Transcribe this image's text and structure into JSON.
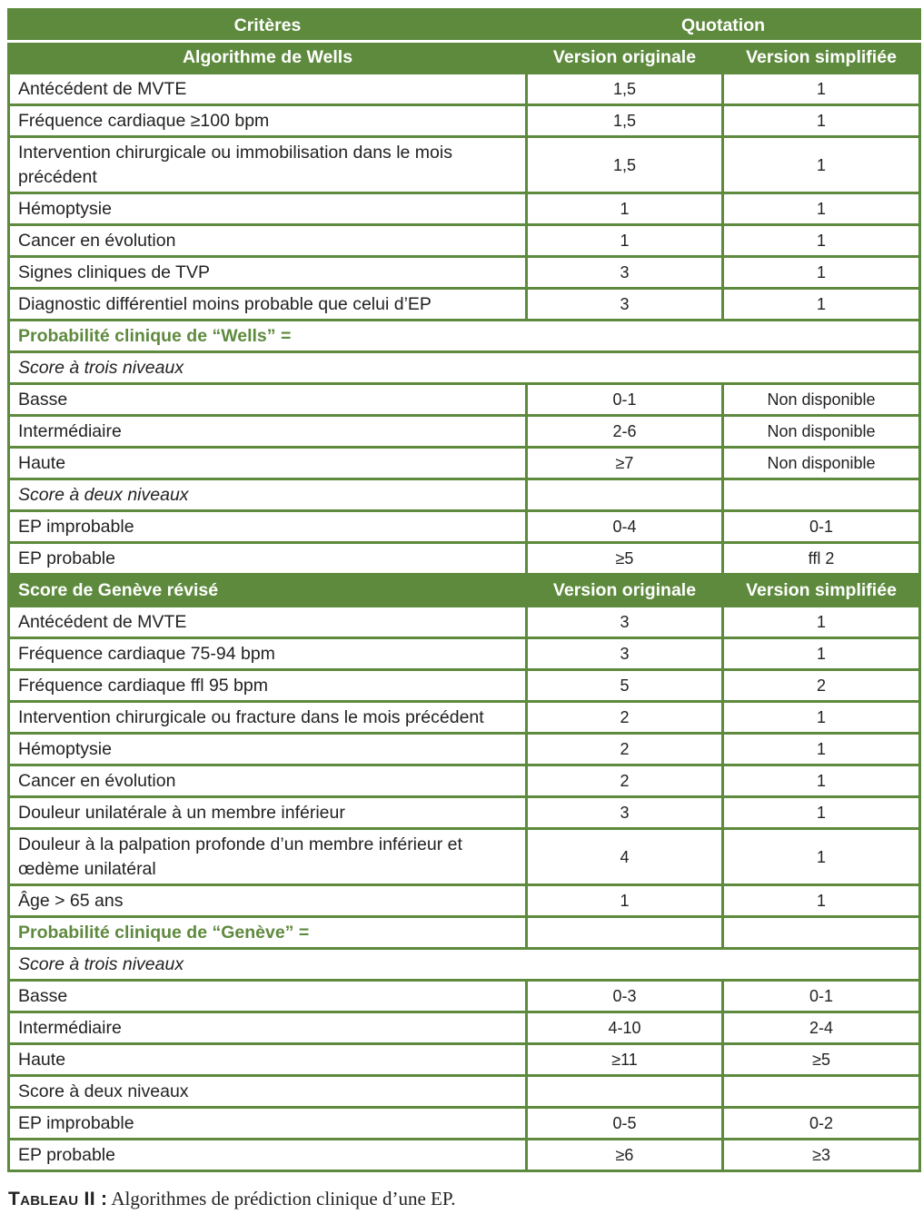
{
  "table": {
    "header": {
      "criteria": "Critères",
      "quotation": "Quotation"
    },
    "rows": [
      {
        "type": "header",
        "cells": [
          "Algorithme de Wells",
          "Version originale",
          "Version simplifiée"
        ]
      },
      {
        "type": "data",
        "cells": [
          "Antécédent de MVTE",
          "1,5",
          "1"
        ]
      },
      {
        "type": "data",
        "cells": [
          "Fréquence cardiaque ≥100 bpm",
          "1,5",
          "1"
        ]
      },
      {
        "type": "data",
        "cells": [
          "Intervention chirurgicale ou immobilisation dans le mois précédent",
          "1,5",
          "1"
        ]
      },
      {
        "type": "data",
        "cells": [
          "Hémoptysie",
          "1",
          "1"
        ]
      },
      {
        "type": "data",
        "cells": [
          "Cancer en évolution",
          "1",
          "1"
        ]
      },
      {
        "type": "data",
        "cells": [
          "Signes cliniques de TVP",
          "3",
          "1"
        ]
      },
      {
        "type": "data",
        "cells": [
          "Diagnostic différentiel moins probable que celui d’EP",
          "3",
          "1"
        ]
      },
      {
        "type": "green-span",
        "cells": [
          "Probabilité clinique de “Wells” ="
        ]
      },
      {
        "type": "italic-span",
        "cells": [
          "Score à trois niveaux"
        ]
      },
      {
        "type": "data",
        "cells": [
          "Basse",
          "0-1",
          "Non disponible"
        ]
      },
      {
        "type": "data",
        "cells": [
          "Intermédiaire",
          "2-6",
          "Non disponible"
        ]
      },
      {
        "type": "data",
        "cells": [
          "Haute",
          "≥7",
          "Non disponible"
        ]
      },
      {
        "type": "italic",
        "cells": [
          "Score à deux niveaux",
          "",
          ""
        ]
      },
      {
        "type": "data",
        "cells": [
          "EP improbable",
          "0-4",
          "0-1"
        ]
      },
      {
        "type": "data",
        "cells": [
          "EP probable",
          "≥5",
          "ffl 2"
        ]
      },
      {
        "type": "header-sec",
        "cells": [
          "Score de Genève révisé",
          "Version originale",
          "Version simplifiée"
        ]
      },
      {
        "type": "data",
        "cells": [
          "Antécédent de MVTE",
          "3",
          "1"
        ]
      },
      {
        "type": "data",
        "cells": [
          "Fréquence cardiaque 75-94 bpm",
          "3",
          "1"
        ]
      },
      {
        "type": "data",
        "cells": [
          "Fréquence cardiaque ffl 95 bpm",
          "5",
          "2"
        ]
      },
      {
        "type": "data",
        "cells": [
          "Intervention chirurgicale ou fracture dans le mois précédent",
          "2",
          "1"
        ]
      },
      {
        "type": "data",
        "cells": [
          "Hémoptysie",
          "2",
          "1"
        ]
      },
      {
        "type": "data",
        "cells": [
          "Cancer en évolution",
          "2",
          "1"
        ]
      },
      {
        "type": "data",
        "cells": [
          "Douleur unilatérale à un membre inférieur",
          "3",
          "1"
        ]
      },
      {
        "type": "data",
        "cells": [
          "Douleur à la palpation profonde d’un membre inférieur et œdème unilatéral",
          "4",
          "1"
        ]
      },
      {
        "type": "data",
        "cells": [
          "Âge > 65 ans",
          "1",
          "1"
        ]
      },
      {
        "type": "green",
        "cells": [
          "Probabilité clinique de “Genève” =",
          "",
          ""
        ]
      },
      {
        "type": "italic-span",
        "cells": [
          "Score à trois niveaux"
        ]
      },
      {
        "type": "data",
        "cells": [
          "Basse",
          "0-3",
          "0-1"
        ]
      },
      {
        "type": "data",
        "cells": [
          "Intermédiaire",
          "4-10",
          "2-4"
        ]
      },
      {
        "type": "data",
        "cells": [
          "Haute",
          "≥11",
          "≥5"
        ]
      },
      {
        "type": "data",
        "cells": [
          "Score à deux niveaux",
          "",
          ""
        ]
      },
      {
        "type": "data",
        "cells": [
          "EP improbable",
          "0-5",
          "0-2"
        ]
      },
      {
        "type": "data",
        "cells": [
          "EP probable",
          "≥6",
          "≥3"
        ]
      }
    ]
  },
  "caption": {
    "label": "Tableau II :",
    "text": " Algorithmes de prédiction clinique d’une EP."
  },
  "colors": {
    "accent": "#5e8a3e"
  }
}
